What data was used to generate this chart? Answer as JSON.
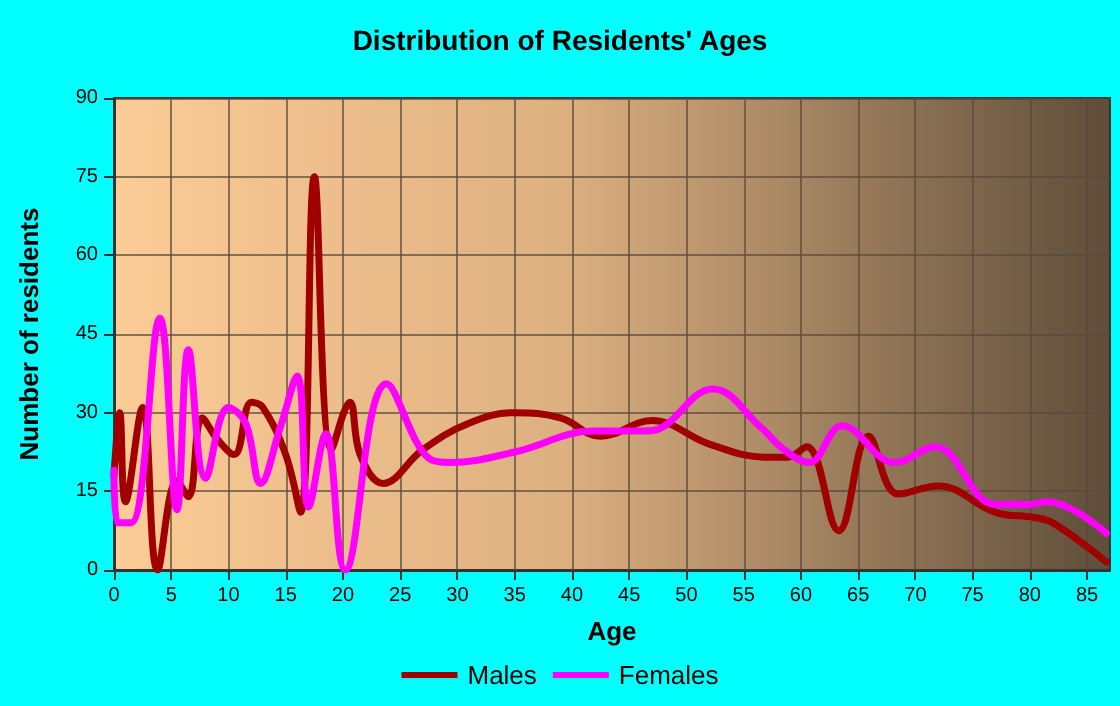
{
  "chart_data": {
    "type": "line",
    "title": "Distribution of Residents' Ages",
    "xlabel": "Age",
    "ylabel": "Number of residents",
    "xlim": [
      0,
      87
    ],
    "xticks": [
      0,
      5,
      10,
      15,
      20,
      25,
      30,
      35,
      40,
      45,
      50,
      55,
      60,
      65,
      70,
      75,
      80,
      85
    ],
    "ylim": [
      0,
      90
    ],
    "yticks": [
      0,
      15,
      30,
      45,
      60,
      75,
      90
    ],
    "grid": true,
    "legend": "bottom",
    "marker": "none",
    "line_style": "solid",
    "series": [
      {
        "name": "Males",
        "color": "#a00000",
        "x": [
          0,
          0.5,
          1,
          2.5,
          3.8,
          5.5,
          6.5,
          7.7,
          9,
          10.5,
          12,
          13,
          15,
          16.3,
          17.5,
          19,
          20.6,
          21.5,
          23.5,
          27,
          31,
          35,
          39,
          42.5,
          47,
          52,
          57,
          58.8,
          60.5,
          63.3,
          65.9,
          68.5,
          72,
          77,
          80.4,
          82,
          86.7
        ],
        "values": [
          18,
          30,
          13,
          31,
          0,
          17,
          14,
          29,
          25,
          22,
          32,
          31,
          22,
          11,
          75,
          23,
          32,
          22,
          16.5,
          23,
          28,
          30,
          29,
          25.5,
          28.5,
          24,
          21.5,
          21.5,
          23.5,
          7.5,
          25.5,
          14.5,
          16,
          11,
          10,
          9,
          1.5
        ]
      },
      {
        "name": "Females",
        "color": "#ff00ff",
        "x": [
          0,
          0.3,
          1.5,
          4,
          5.5,
          6.5,
          8,
          10,
          11.5,
          12.8,
          14.5,
          16,
          17,
          18.5,
          20.2,
          23.8,
          27.7,
          29.3,
          35,
          41.9,
          46.7,
          52.3,
          56.6,
          58.5,
          60.7,
          63.6,
          68.2,
          71.7,
          77,
          80,
          81.5,
          86.7
        ],
        "values": [
          19,
          9,
          9,
          48,
          11.5,
          42,
          17.5,
          31,
          28,
          16.5,
          27,
          37,
          12,
          26,
          0,
          35.5,
          21,
          20.5,
          22.5,
          26.5,
          26.5,
          34.5,
          27,
          23,
          20.5,
          27.5,
          20.5,
          23.5,
          12.5,
          12.5,
          13,
          7
        ]
      }
    ]
  }
}
